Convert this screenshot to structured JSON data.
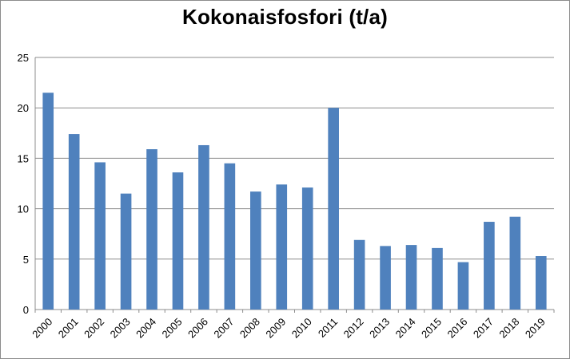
{
  "chart_data": {
    "type": "bar",
    "title": "Kokonaisfosfori (t/a)",
    "xlabel": "",
    "ylabel": "",
    "categories": [
      "2000",
      "2001",
      "2002",
      "2003",
      "2004",
      "2005",
      "2006",
      "2007",
      "2008",
      "2009",
      "2010",
      "2011",
      "2012",
      "2013",
      "2014",
      "2015",
      "2016",
      "2017",
      "2018",
      "2019"
    ],
    "values": [
      21.5,
      17.4,
      14.6,
      11.5,
      15.9,
      13.6,
      16.3,
      14.5,
      11.7,
      12.4,
      12.1,
      20.0,
      6.9,
      6.3,
      6.4,
      6.1,
      4.7,
      8.7,
      9.2,
      5.3
    ],
    "ylim": [
      0,
      25
    ],
    "yticks": [
      "0",
      "5",
      "10",
      "15",
      "20",
      "25"
    ],
    "grid": true,
    "legend": "none",
    "bar_color": "#4f81bd",
    "grid_color": "#8c8c8c",
    "axis_color": "#8c8c8c"
  }
}
